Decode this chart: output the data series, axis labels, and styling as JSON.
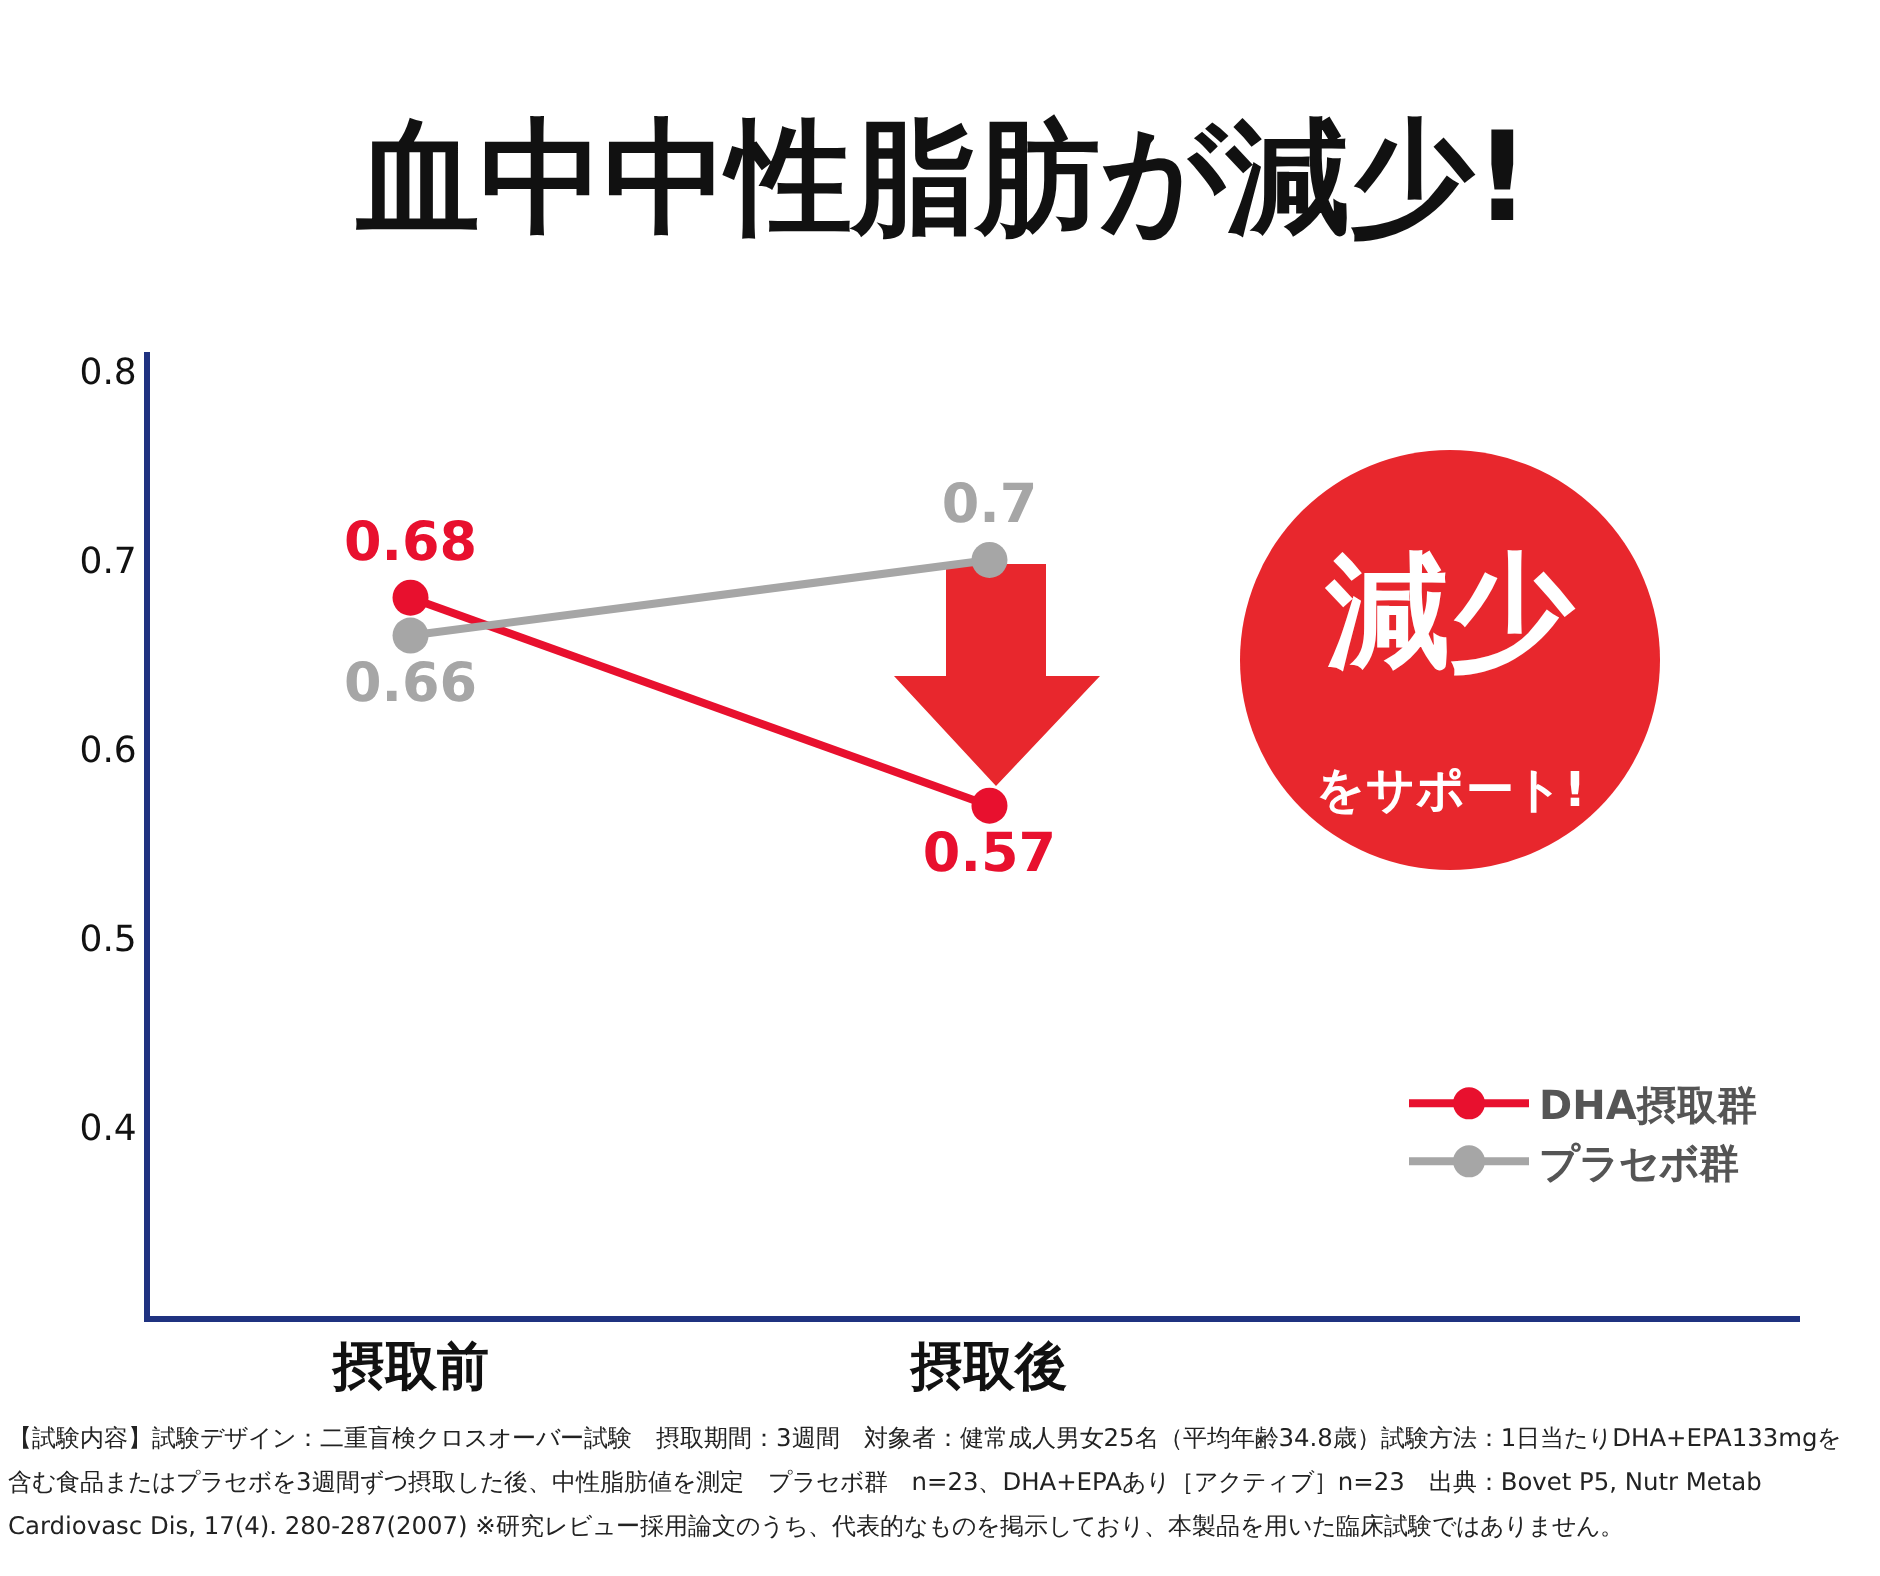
{
  "chart_data": {
    "type": "line",
    "title": "血中中性脂肪が減少!",
    "categories": [
      "摂取前",
      "摂取後"
    ],
    "series": [
      {
        "name": "DHA摂取群",
        "color": "#e8102e",
        "values": [
          0.68,
          0.57
        ]
      },
      {
        "name": "プラセボ群",
        "color": "#a6a6a6",
        "values": [
          0.66,
          0.7
        ]
      }
    ],
    "ylim": [
      0.3,
      0.81
    ],
    "yticks": [
      0.4,
      0.5,
      0.6,
      0.7,
      0.8
    ],
    "data_labels": true,
    "grid": false,
    "legend": "bottom right",
    "marker": "circle",
    "line_style": "solid",
    "annotations": [
      "減少",
      "をサポート!",
      "【試験内容】試験デザイン：二重盲検クロスオーバー試験　摂取期間：3週間　対象者：健常成人男女25名（平均年齢34.8歳）試験方法：1日当たりDHA+EPA133mgを",
      "含む食品またはプラセボを3週間ずつ摂取した後、中性脂肪値を測定　プラセボ群　n=23、DHA+EPAあり［アクティブ］n=23　出典：Bovet P5, Nutr Metab",
      "Cardiovasc Dis, 17(4). 280-287(2007) ※研究レビュー採用論文のうち、代表的なものを掲示しており、本製品を用いた臨床試験ではありません。"
    ]
  }
}
